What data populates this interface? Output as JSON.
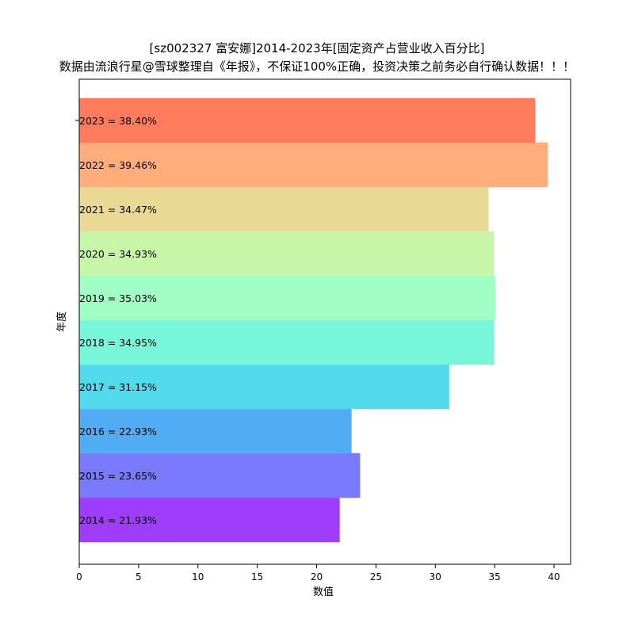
{
  "chart_data": {
    "type": "bar",
    "orientation": "horizontal",
    "title": "[sz002327 富安娜]2014-2023年[固定资产占营业收入百分比]",
    "subtitle": "数据由流浪行星@雪球整理自《年报》，不保证100%正确，投资决策之前务必自行确认数据！！！",
    "xlabel": "数值",
    "ylabel": "年度",
    "xlim": [
      0,
      41.4
    ],
    "xticks": [
      "0",
      "5",
      "10",
      "15",
      "20",
      "25",
      "30",
      "35",
      "40"
    ],
    "grid": false,
    "categories": [
      "2014",
      "2015",
      "2016",
      "2017",
      "2018",
      "2019",
      "2020",
      "2021",
      "2022",
      "2023"
    ],
    "values": [
      21.93,
      23.65,
      22.93,
      31.15,
      34.95,
      35.03,
      34.93,
      34.47,
      39.46,
      38.4
    ],
    "bar_labels": [
      "2014 = 21.93%",
      "2015 = 23.65%",
      "2016 = 22.93%",
      "2017 = 31.15%",
      "2018 = 34.95%",
      "2019 = 35.03%",
      "2020 = 34.93%",
      "2021 = 34.47%",
      "2022 = 39.46%",
      "2023 = 38.40%"
    ],
    "colors": [
      "#9e3dfc",
      "#7a7bfc",
      "#52acf4",
      "#51d9ec",
      "#78f6da",
      "#a0fec4",
      "#c8f6a8",
      "#e9d994",
      "#ffae7b",
      "#ff7b5c"
    ]
  }
}
